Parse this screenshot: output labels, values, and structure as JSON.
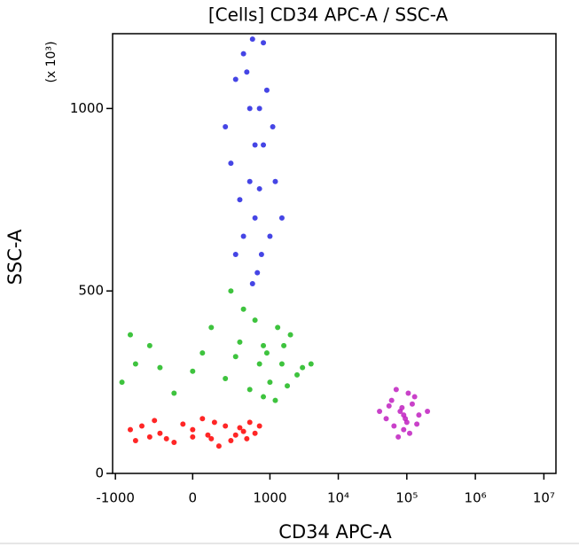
{
  "chart_data": {
    "type": "scatter",
    "title": "[Cells] CD34 APC-A / SSC-A",
    "xlabel": "CD34 APC-A",
    "ylabel": "SSC-A",
    "ylabel_multiplier": "(x 10³)",
    "xscale": "biexponential",
    "xlim": [
      -1100,
      15000000
    ],
    "xticks": [
      -1000,
      0,
      1000,
      {
        "value": 10000,
        "label": "10⁴"
      },
      {
        "value": 100000,
        "label": "10⁵"
      },
      {
        "value": 1000000,
        "label": "10⁶"
      },
      {
        "value": 10000000,
        "label": "10⁷"
      }
    ],
    "ylim": [
      0,
      1205
    ],
    "yticks": [
      0,
      500,
      1000
    ],
    "series": [
      {
        "color": "#ff0000",
        "x": [
          -200,
          0,
          100,
          -400,
          300,
          500,
          -100,
          200,
          50,
          -300,
          400,
          -600,
          150,
          -50,
          250,
          600,
          -250,
          80,
          350,
          -150,
          700,
          0,
          -500,
          450,
          120
        ],
        "values": [
          110,
          120,
          95,
          130,
          105,
          140,
          85,
          130,
          150,
          100,
          115,
          120,
          75,
          135,
          90,
          110,
          145,
          105,
          125,
          95,
          130,
          100,
          90,
          95,
          140
        ]
      },
      {
        "color": "#1cb81c",
        "x": [
          -500,
          0,
          300,
          800,
          1500,
          2500,
          -800,
          100,
          600,
          1000,
          2000,
          3000,
          -300,
          500,
          1200,
          200,
          700,
          -100,
          400,
          900,
          1800,
          4000,
          -600,
          1300,
          250,
          50,
          1600,
          -200,
          800,
          350
        ],
        "values": [
          300,
          280,
          320,
          350,
          300,
          270,
          250,
          400,
          420,
          250,
          380,
          290,
          350,
          230,
          200,
          260,
          300,
          220,
          450,
          330,
          240,
          300,
          380,
          400,
          500,
          330,
          350,
          290,
          210,
          360
        ]
      },
      {
        "color": "#2424e0",
        "x": [
          300,
          500,
          700,
          400,
          600,
          800,
          200,
          1000,
          450,
          650,
          350,
          900,
          550,
          250,
          750,
          1200,
          500,
          800,
          400,
          600,
          1500,
          300,
          700,
          1100,
          550
        ],
        "values": [
          600,
          800,
          1000,
          1150,
          700,
          900,
          950,
          650,
          1100,
          550,
          750,
          1050,
          1190,
          850,
          600,
          800,
          1000,
          1180,
          650,
          900,
          700,
          1080,
          780,
          950,
          520
        ]
      },
      {
        "color": "#c020c0",
        "x": [
          50000,
          80000,
          100000,
          120000,
          60000,
          90000,
          150000,
          70000,
          110000,
          40000,
          130000,
          85000,
          95000,
          65000,
          200000,
          75000,
          105000,
          55000,
          140000,
          90000
        ],
        "values": [
          150,
          170,
          140,
          190,
          200,
          120,
          160,
          230,
          110,
          170,
          210,
          180,
          150,
          130,
          170,
          100,
          220,
          185,
          135,
          160
        ]
      }
    ]
  }
}
